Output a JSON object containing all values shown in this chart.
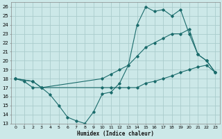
{
  "xlabel": "Humidex (Indice chaleur)",
  "bg_color": "#cce8e8",
  "grid_color": "#aacccc",
  "line_color": "#1a6b6b",
  "xlim": [
    -0.5,
    23.5
  ],
  "ylim": [
    13,
    26.5
  ],
  "xticks": [
    0,
    1,
    2,
    3,
    4,
    5,
    6,
    7,
    8,
    9,
    10,
    11,
    12,
    13,
    14,
    15,
    16,
    17,
    18,
    19,
    20,
    21,
    22,
    23
  ],
  "yticks": [
    13,
    14,
    15,
    16,
    17,
    18,
    19,
    20,
    21,
    22,
    23,
    24,
    25,
    26
  ],
  "line1_x": [
    0,
    1,
    2,
    3,
    4,
    5,
    6,
    7,
    8,
    9,
    10,
    11,
    12,
    13,
    14,
    15,
    16,
    17,
    18,
    19,
    20,
    21,
    22,
    23
  ],
  "line1_y": [
    18,
    17.7,
    17,
    17,
    16.2,
    15,
    13.7,
    13.3,
    13,
    14.3,
    16.3,
    16.5,
    17.5,
    19.5,
    24,
    26,
    25.5,
    25.7,
    25,
    25.7,
    23,
    20.7,
    20,
    18.7
  ],
  "line2_x": [
    0,
    2,
    3,
    10,
    11,
    12,
    13,
    14,
    15,
    16,
    17,
    18,
    19,
    20,
    21,
    22,
    23
  ],
  "line2_y": [
    18,
    17.7,
    17,
    18,
    18.5,
    19,
    19.5,
    20.5,
    21.5,
    22,
    22.5,
    23,
    23,
    23.5,
    20.7,
    20,
    18.7
  ],
  "line3_x": [
    0,
    2,
    3,
    10,
    11,
    12,
    13,
    14,
    15,
    16,
    17,
    18,
    19,
    20,
    21,
    22,
    23
  ],
  "line3_y": [
    18,
    17.7,
    17,
    17,
    17,
    17,
    17,
    17,
    17.5,
    17.7,
    18,
    18.3,
    18.7,
    19,
    19.3,
    19.5,
    18.7
  ]
}
